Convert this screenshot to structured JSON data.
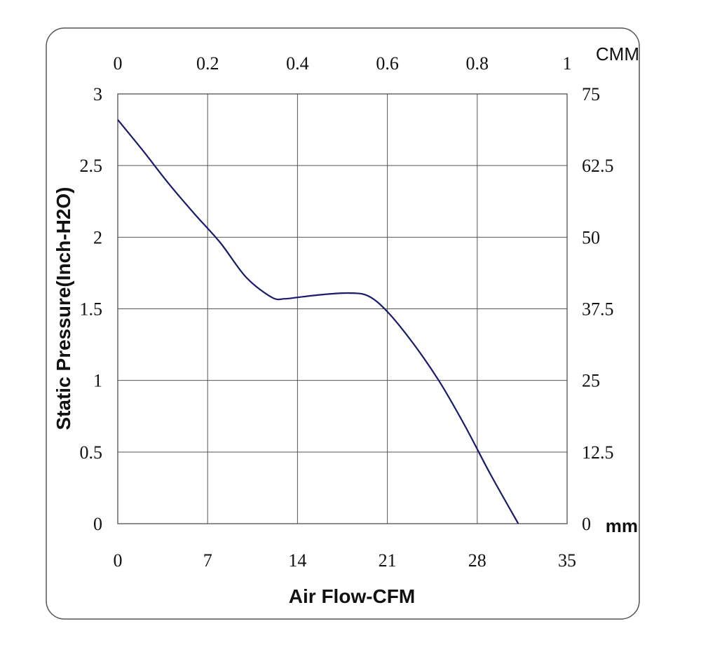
{
  "chart_data": {
    "type": "line",
    "xlabel": "Air Flow-CFM",
    "ylabel": "Static Pressure(Inch-H2O)",
    "x_unit_top": "CMM",
    "y_unit_right": "mm",
    "xlim": [
      0,
      35
    ],
    "ylim": [
      0,
      3
    ],
    "x_ticks": [
      "0",
      "7",
      "14",
      "21",
      "28",
      "35"
    ],
    "x_ticks_top": [
      "0",
      "0.2",
      "0.4",
      "0.6",
      "0.8",
      "1"
    ],
    "y_ticks": [
      "0",
      "0.5",
      "1",
      "1.5",
      "2",
      "2.5",
      "3"
    ],
    "y_ticks_right": [
      "0",
      "12.5",
      "25",
      "37.5",
      "50",
      "62.5",
      "75"
    ],
    "grid": true,
    "line_color": "#1a1a6e",
    "series": [
      {
        "name": "",
        "x": [
          0,
          2,
          4,
          6,
          8,
          10,
          12,
          13,
          14,
          16,
          18,
          19.5,
          21,
          23,
          25,
          27,
          29,
          31.2
        ],
        "values": [
          2.82,
          2.6,
          2.37,
          2.16,
          1.96,
          1.72,
          1.58,
          1.57,
          1.58,
          1.6,
          1.61,
          1.59,
          1.48,
          1.26,
          1.0,
          0.69,
          0.35,
          0.0
        ]
      }
    ]
  }
}
